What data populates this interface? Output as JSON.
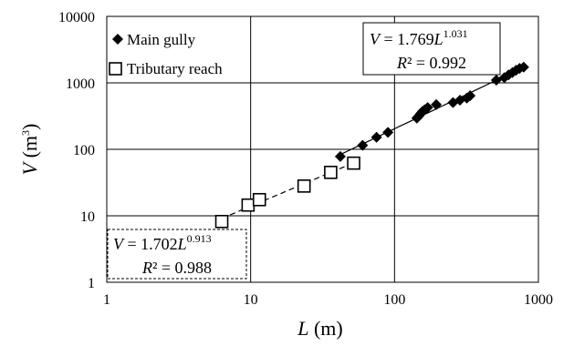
{
  "chart_data": {
    "type": "scatter",
    "x_scale": "log",
    "y_scale": "log",
    "xlim": [
      1,
      1000
    ],
    "ylim": [
      1,
      10000
    ],
    "grid": true,
    "legend_position": "top-left",
    "xlabel": {
      "symbol": "L",
      "unit": " (m)"
    },
    "ylabel": {
      "symbol": "V",
      "unit_open": " (m",
      "unit_sup": "3",
      "unit_close": ")"
    },
    "x_ticks": [
      {
        "value": 1,
        "label": "1"
      },
      {
        "value": 10,
        "label": "10"
      },
      {
        "value": 100,
        "label": "100"
      },
      {
        "value": 1000,
        "label": "1000"
      }
    ],
    "y_ticks": [
      {
        "value": 1,
        "label": "1"
      },
      {
        "value": 10,
        "label": "10"
      },
      {
        "value": 100,
        "label": "100"
      },
      {
        "value": 1000,
        "label": "1000"
      },
      {
        "value": 10000,
        "label": "10000"
      }
    ],
    "series": [
      {
        "name": "Main gully",
        "marker": "diamond",
        "x": [
          42,
          60,
          75,
          90,
          143,
          148,
          152,
          156,
          162,
          170,
          195,
          255,
          285,
          318,
          335,
          510,
          580,
          620,
          660,
          700,
          740,
          790
        ],
        "y": [
          78,
          115,
          152,
          180,
          295,
          320,
          345,
          370,
          395,
          425,
          470,
          505,
          550,
          590,
          640,
          1100,
          1200,
          1320,
          1430,
          1550,
          1650,
          1720
        ]
      },
      {
        "name": "Tributary reach",
        "marker": "square-open",
        "x": [
          6.3,
          9.6,
          11.5,
          23.5,
          36,
          52
        ],
        "y": [
          8.2,
          14.5,
          17.5,
          28,
          45,
          62
        ]
      }
    ],
    "fits": [
      {
        "series": "Main gully",
        "coef": 1.769,
        "exponent": 1.031,
        "x_range": [
          42,
          790
        ],
        "line_style": "solid",
        "equation": {
          "lhs": "V",
          "eq": " = 1.769",
          "var": "L",
          "exp": "1.031"
        },
        "r2": "R² = 0.992",
        "r2_var": "R",
        "r2_rest": "² = 0.992"
      },
      {
        "series": "Tributary reach",
        "coef": 1.702,
        "exponent": 0.913,
        "x_range": [
          6.3,
          52
        ],
        "line_style": "dashed",
        "equation": {
          "lhs": "V",
          "eq": " = 1.702",
          "var": "L",
          "exp": "0.913"
        },
        "r2": "R² = 0.988",
        "r2_var": "R",
        "r2_rest": "² = 0.988"
      }
    ],
    "colors": {
      "markers": "#000000",
      "grid": "#000000",
      "lines": "#000000"
    }
  }
}
